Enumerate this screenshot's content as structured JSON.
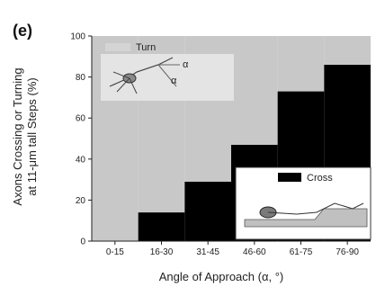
{
  "panel_label": "(e)",
  "chart_data": {
    "type": "bar",
    "stacked": true,
    "categories": [
      "0-15",
      "16-30",
      "31-45",
      "46-60",
      "61-75",
      "76-90"
    ],
    "series": [
      {
        "name": "Cross",
        "color": "#000000",
        "values": [
          0,
          14,
          29,
          47,
          73,
          86
        ]
      },
      {
        "name": "Turn",
        "color": "#c8c8c8",
        "values": [
          100,
          86,
          71,
          53,
          27,
          14
        ]
      }
    ],
    "xlabel": "Angle of Approach (α, °)",
    "ylabel_lines": [
      "Axons Crossing or Turning",
      "at 11-μm tall Steps (%)"
    ],
    "ylim": [
      0,
      100
    ],
    "yticks": [
      0,
      20,
      40,
      60,
      80,
      100
    ],
    "grid": false,
    "legend": [
      {
        "label": "Turn",
        "placement": "top-left"
      },
      {
        "label": "Cross",
        "placement": "bottom-right"
      }
    ],
    "inset_labels": [
      "α",
      "α"
    ]
  }
}
